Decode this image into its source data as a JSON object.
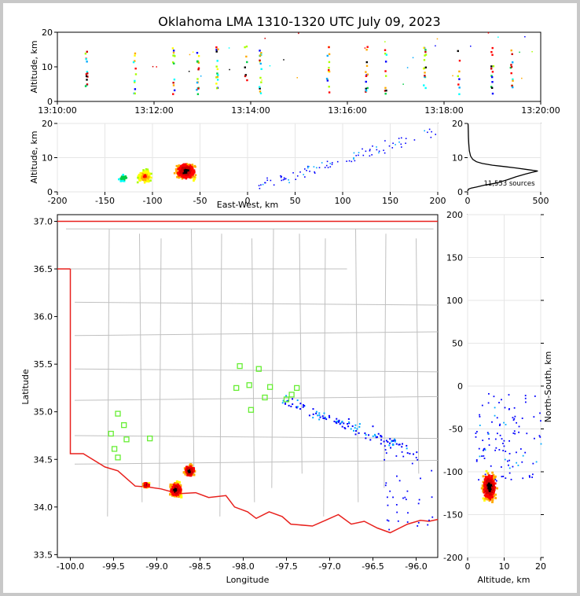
{
  "chart_data": {
    "title": "Oklahoma LMA 1310-1320 UTC July 09, 2023",
    "panels": [
      {
        "id": "time_height",
        "type": "scatter",
        "xlabel": "",
        "ylabel": "Altitude, km",
        "xticks": [
          "13:10:00",
          "13:12:00",
          "13:14:00",
          "13:16:00",
          "13:18:00",
          "13:20:00"
        ],
        "xlim_minutes": [
          0,
          10
        ],
        "ylim": [
          0,
          20
        ],
        "yticks": [
          0,
          10,
          20
        ],
        "flash_columns_minutes": [
          0.6,
          1.6,
          2.4,
          2.9,
          3.3,
          3.9,
          4.2,
          5.6,
          6.4,
          6.8,
          7.6,
          8.3,
          9.0,
          9.4
        ]
      },
      {
        "id": "ew_height",
        "type": "scatter",
        "xlabel": "East-West, km",
        "ylabel": "Altitude, km",
        "xlim": [
          -200,
          200
        ],
        "xticks": [
          -200,
          -150,
          -100,
          -50,
          0,
          50,
          100,
          150,
          200
        ],
        "ylim": [
          0,
          20
        ],
        "yticks": [
          0,
          10,
          20
        ]
      },
      {
        "id": "altitude_histogram",
        "type": "line",
        "xlim": [
          0,
          500
        ],
        "xticks": [
          0,
          500
        ],
        "ylim": [
          0,
          20
        ],
        "yticks": [
          0,
          10,
          20
        ],
        "annotation": "11,553 sources",
        "points": [
          [
            0,
            0.2
          ],
          [
            6,
            0.8
          ],
          [
            25,
            1.1
          ],
          [
            60,
            1.4
          ],
          [
            120,
            2.0
          ],
          [
            200,
            2.6
          ],
          [
            270,
            3.5
          ],
          [
            330,
            4.4
          ],
          [
            395,
            5.2
          ],
          [
            440,
            5.7
          ],
          [
            480,
            6.1
          ],
          [
            410,
            6.5
          ],
          [
            330,
            7.0
          ],
          [
            250,
            7.4
          ],
          [
            170,
            7.8
          ],
          [
            100,
            8.3
          ],
          [
            60,
            8.8
          ],
          [
            35,
            9.5
          ],
          [
            20,
            10.5
          ],
          [
            12,
            12
          ],
          [
            8,
            14
          ],
          [
            6,
            16
          ],
          [
            5,
            18
          ],
          [
            4,
            19.5
          ],
          [
            2,
            20
          ]
        ]
      },
      {
        "id": "plan_view",
        "type": "scatter",
        "xlabel": "Longitude",
        "ylabel": "Latitude",
        "xlim": [
          -100.15,
          -95.75
        ],
        "ylim": [
          33.47,
          37.07
        ],
        "xticks": [
          -100.0,
          -99.5,
          -99.0,
          -98.5,
          -98.0,
          -97.5,
          -97.0,
          -96.5,
          -96.0
        ],
        "yticks": [
          33.5,
          34.0,
          34.5,
          35.0,
          35.5,
          36.0,
          36.5,
          37.0
        ],
        "stations": [
          [
            -98.04,
            35.48
          ],
          [
            -97.82,
            35.45
          ],
          [
            -98.08,
            35.25
          ],
          [
            -97.93,
            35.28
          ],
          [
            -97.69,
            35.26
          ],
          [
            -97.38,
            35.25
          ],
          [
            -97.44,
            35.18
          ],
          [
            -97.75,
            35.15
          ],
          [
            -97.5,
            35.13
          ],
          [
            -97.91,
            35.02
          ],
          [
            -99.45,
            34.98
          ],
          [
            -99.38,
            34.86
          ],
          [
            -99.53,
            34.77
          ],
          [
            -99.35,
            34.71
          ],
          [
            -99.08,
            34.72
          ],
          [
            -99.49,
            34.61
          ],
          [
            -99.45,
            34.52
          ]
        ],
        "state_border": [
          [
            -100.0,
            36.5
          ],
          [
            -100.0,
            34.56
          ],
          [
            -99.85,
            34.56
          ],
          [
            -99.6,
            34.42
          ],
          [
            -99.45,
            34.38
          ],
          [
            -99.25,
            34.22
          ],
          [
            -99.1,
            34.21
          ],
          [
            -98.95,
            34.19
          ],
          [
            -98.75,
            34.14
          ],
          [
            -98.55,
            34.15
          ],
          [
            -98.4,
            34.1
          ],
          [
            -98.2,
            34.12
          ],
          [
            -98.1,
            34.0
          ],
          [
            -97.95,
            33.95
          ],
          [
            -97.85,
            33.88
          ],
          [
            -97.7,
            33.95
          ],
          [
            -97.55,
            33.9
          ],
          [
            -97.45,
            33.82
          ],
          [
            -97.2,
            33.8
          ],
          [
            -97.05,
            33.86
          ],
          [
            -96.9,
            33.92
          ],
          [
            -96.75,
            33.82
          ],
          [
            -96.6,
            33.85
          ],
          [
            -96.45,
            33.78
          ],
          [
            -96.3,
            33.73
          ],
          [
            -96.1,
            33.82
          ],
          [
            -95.95,
            33.86
          ],
          [
            -95.85,
            33.85
          ],
          [
            -95.75,
            33.87
          ]
        ]
      },
      {
        "id": "height_ns",
        "type": "scatter",
        "xlabel": "Altitude, km",
        "ylabel": "North-South, km",
        "xlim": [
          0,
          20
        ],
        "xticks": [
          0,
          10,
          20
        ],
        "ylim": [
          -200,
          200
        ],
        "yticks": [
          -200,
          -150,
          -100,
          -50,
          0,
          50,
          100,
          150,
          200
        ]
      }
    ]
  }
}
